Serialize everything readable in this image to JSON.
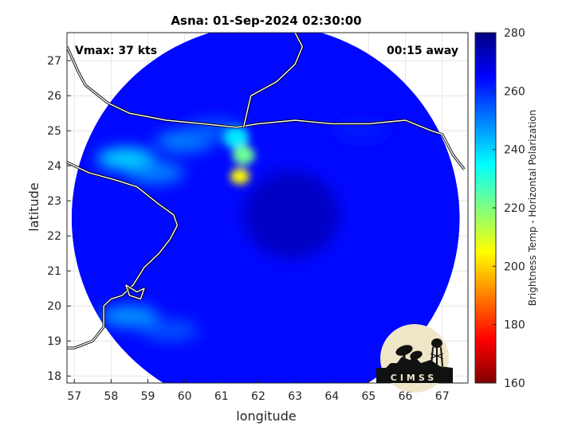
{
  "chart_data": {
    "type": "heatmap",
    "title": "Asna: 01-Sep-2024 02:30:00",
    "xlabel": "longitude",
    "ylabel": "latitude",
    "xlim": [
      56.8,
      67.7
    ],
    "ylim": [
      17.8,
      27.8
    ],
    "xticks": [
      57,
      58,
      59,
      60,
      61,
      62,
      63,
      64,
      65,
      66,
      67
    ],
    "yticks": [
      18,
      19,
      20,
      21,
      22,
      23,
      24,
      25,
      26,
      27
    ],
    "grid": true,
    "annotations": {
      "vmax": "Vmax: 37 kts",
      "time_offset": "00:15 away"
    },
    "colorbar": {
      "label": "Brightness Temp - Horizontal Polarization",
      "range": [
        160,
        280
      ],
      "ticks": [
        160,
        180,
        200,
        220,
        240,
        260,
        280
      ],
      "colormap": "jet"
    },
    "swath": {
      "center_lon": 62.2,
      "center_lat": 22.5,
      "radius_deg": 5.4
    },
    "features": [
      {
        "name": "convection",
        "lon": 61.5,
        "lat": 23.7,
        "value": 205
      },
      {
        "name": "convection",
        "lon": 61.6,
        "lat": 24.3,
        "value": 222
      },
      {
        "name": "convection",
        "lon": 61.4,
        "lat": 24.8,
        "value": 238
      },
      {
        "name": "coastal band",
        "lon": 58.4,
        "lat": 24.2,
        "value": 240
      },
      {
        "name": "coastal band",
        "lon": 59.2,
        "lat": 23.8,
        "value": 250
      },
      {
        "name": "coastal band",
        "lon": 60.0,
        "lat": 24.7,
        "value": 250
      },
      {
        "name": "coastal band",
        "lon": 58.5,
        "lat": 19.7,
        "value": 248
      },
      {
        "name": "coastal band",
        "lon": 59.6,
        "lat": 19.3,
        "value": 256
      },
      {
        "name": "coastal band",
        "lon": 60.8,
        "lat": 25.0,
        "value": 255
      },
      {
        "name": "coastal band",
        "lon": 64.8,
        "lat": 25.0,
        "value": 262
      }
    ],
    "coastlines": [
      [
        [
          56.8,
          24.1
        ],
        [
          57.4,
          23.8
        ],
        [
          58.1,
          23.6
        ],
        [
          58.7,
          23.4
        ],
        [
          59.3,
          22.9
        ],
        [
          59.7,
          22.6
        ],
        [
          59.8,
          22.3
        ],
        [
          59.6,
          21.9
        ],
        [
          59.3,
          21.5
        ],
        [
          58.9,
          21.1
        ],
        [
          58.6,
          20.6
        ],
        [
          58.3,
          20.3
        ],
        [
          58.0,
          20.2
        ],
        [
          57.8,
          20.0
        ],
        [
          57.8,
          19.4
        ],
        [
          57.5,
          19.0
        ],
        [
          57.0,
          18.8
        ],
        [
          56.8,
          18.8
        ]
      ],
      [
        [
          56.8,
          27.4
        ],
        [
          57.1,
          26.7
        ],
        [
          57.3,
          26.3
        ],
        [
          57.9,
          25.8
        ],
        [
          58.5,
          25.5
        ],
        [
          59.5,
          25.3
        ],
        [
          60.5,
          25.2
        ],
        [
          61.4,
          25.1
        ],
        [
          62.0,
          25.2
        ],
        [
          63.0,
          25.3
        ],
        [
          64.0,
          25.2
        ],
        [
          65.0,
          25.2
        ],
        [
          66.0,
          25.3
        ],
        [
          66.7,
          25.0
        ],
        [
          67.0,
          24.9
        ],
        [
          67.3,
          24.3
        ],
        [
          67.6,
          23.9
        ]
      ],
      [
        [
          61.6,
          25.1
        ],
        [
          61.8,
          26.0
        ],
        [
          62.5,
          26.4
        ],
        [
          63.0,
          26.9
        ],
        [
          63.2,
          27.4
        ],
        [
          63.0,
          27.8
        ]
      ],
      [
        [
          58.4,
          20.6
        ],
        [
          58.7,
          20.4
        ],
        [
          58.9,
          20.5
        ],
        [
          58.8,
          20.2
        ],
        [
          58.5,
          20.3
        ],
        [
          58.4,
          20.6
        ]
      ]
    ]
  }
}
